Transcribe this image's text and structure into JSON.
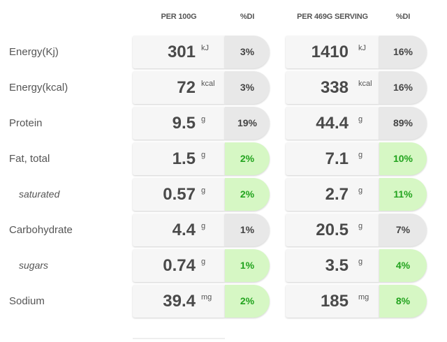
{
  "headers": {
    "per100": "PER 100G",
    "di1": "%DI",
    "serving": "PER 469G SERVING",
    "di2": "%DI"
  },
  "rows": [
    {
      "label": "Energy(Kj)",
      "sub": false,
      "per100": "301",
      "unit100": "kJ",
      "di100": "3%",
      "good100": false,
      "serv": "1410",
      "unitServ": "kJ",
      "diServ": "16%",
      "goodServ": false
    },
    {
      "label": "Energy(kcal)",
      "sub": false,
      "per100": "72",
      "unit100": "kcal",
      "di100": "3%",
      "good100": false,
      "serv": "338",
      "unitServ": "kcal",
      "diServ": "16%",
      "goodServ": false
    },
    {
      "label": "Protein",
      "sub": false,
      "per100": "9.5",
      "unit100": "g",
      "di100": "19%",
      "good100": false,
      "serv": "44.4",
      "unitServ": "g",
      "diServ": "89%",
      "goodServ": false
    },
    {
      "label": "Fat, total",
      "sub": false,
      "per100": "1.5",
      "unit100": "g",
      "di100": "2%",
      "good100": true,
      "serv": "7.1",
      "unitServ": "g",
      "diServ": "10%",
      "goodServ": true
    },
    {
      "label": "saturated",
      "sub": true,
      "per100": "0.57",
      "unit100": "g",
      "di100": "2%",
      "good100": true,
      "serv": "2.7",
      "unitServ": "g",
      "diServ": "11%",
      "goodServ": true
    },
    {
      "label": "Carbohydrate",
      "sub": false,
      "per100": "4.4",
      "unit100": "g",
      "di100": "1%",
      "good100": false,
      "serv": "20.5",
      "unitServ": "g",
      "diServ": "7%",
      "goodServ": false
    },
    {
      "label": "sugars",
      "sub": true,
      "per100": "0.74",
      "unit100": "g",
      "di100": "1%",
      "good100": true,
      "serv": "3.5",
      "unitServ": "g",
      "diServ": "4%",
      "goodServ": true
    },
    {
      "label": "Sodium",
      "sub": false,
      "per100": "39.4",
      "unit100": "mg",
      "di100": "2%",
      "good100": true,
      "serv": "185",
      "unitServ": "mg",
      "diServ": "8%",
      "goodServ": true
    }
  ],
  "colors": {
    "good_bg": "#d6f7c4",
    "good_text": "#22a31e",
    "neutral_bg": "#e8e8e8",
    "cell_bg": "#f6f6f6"
  }
}
